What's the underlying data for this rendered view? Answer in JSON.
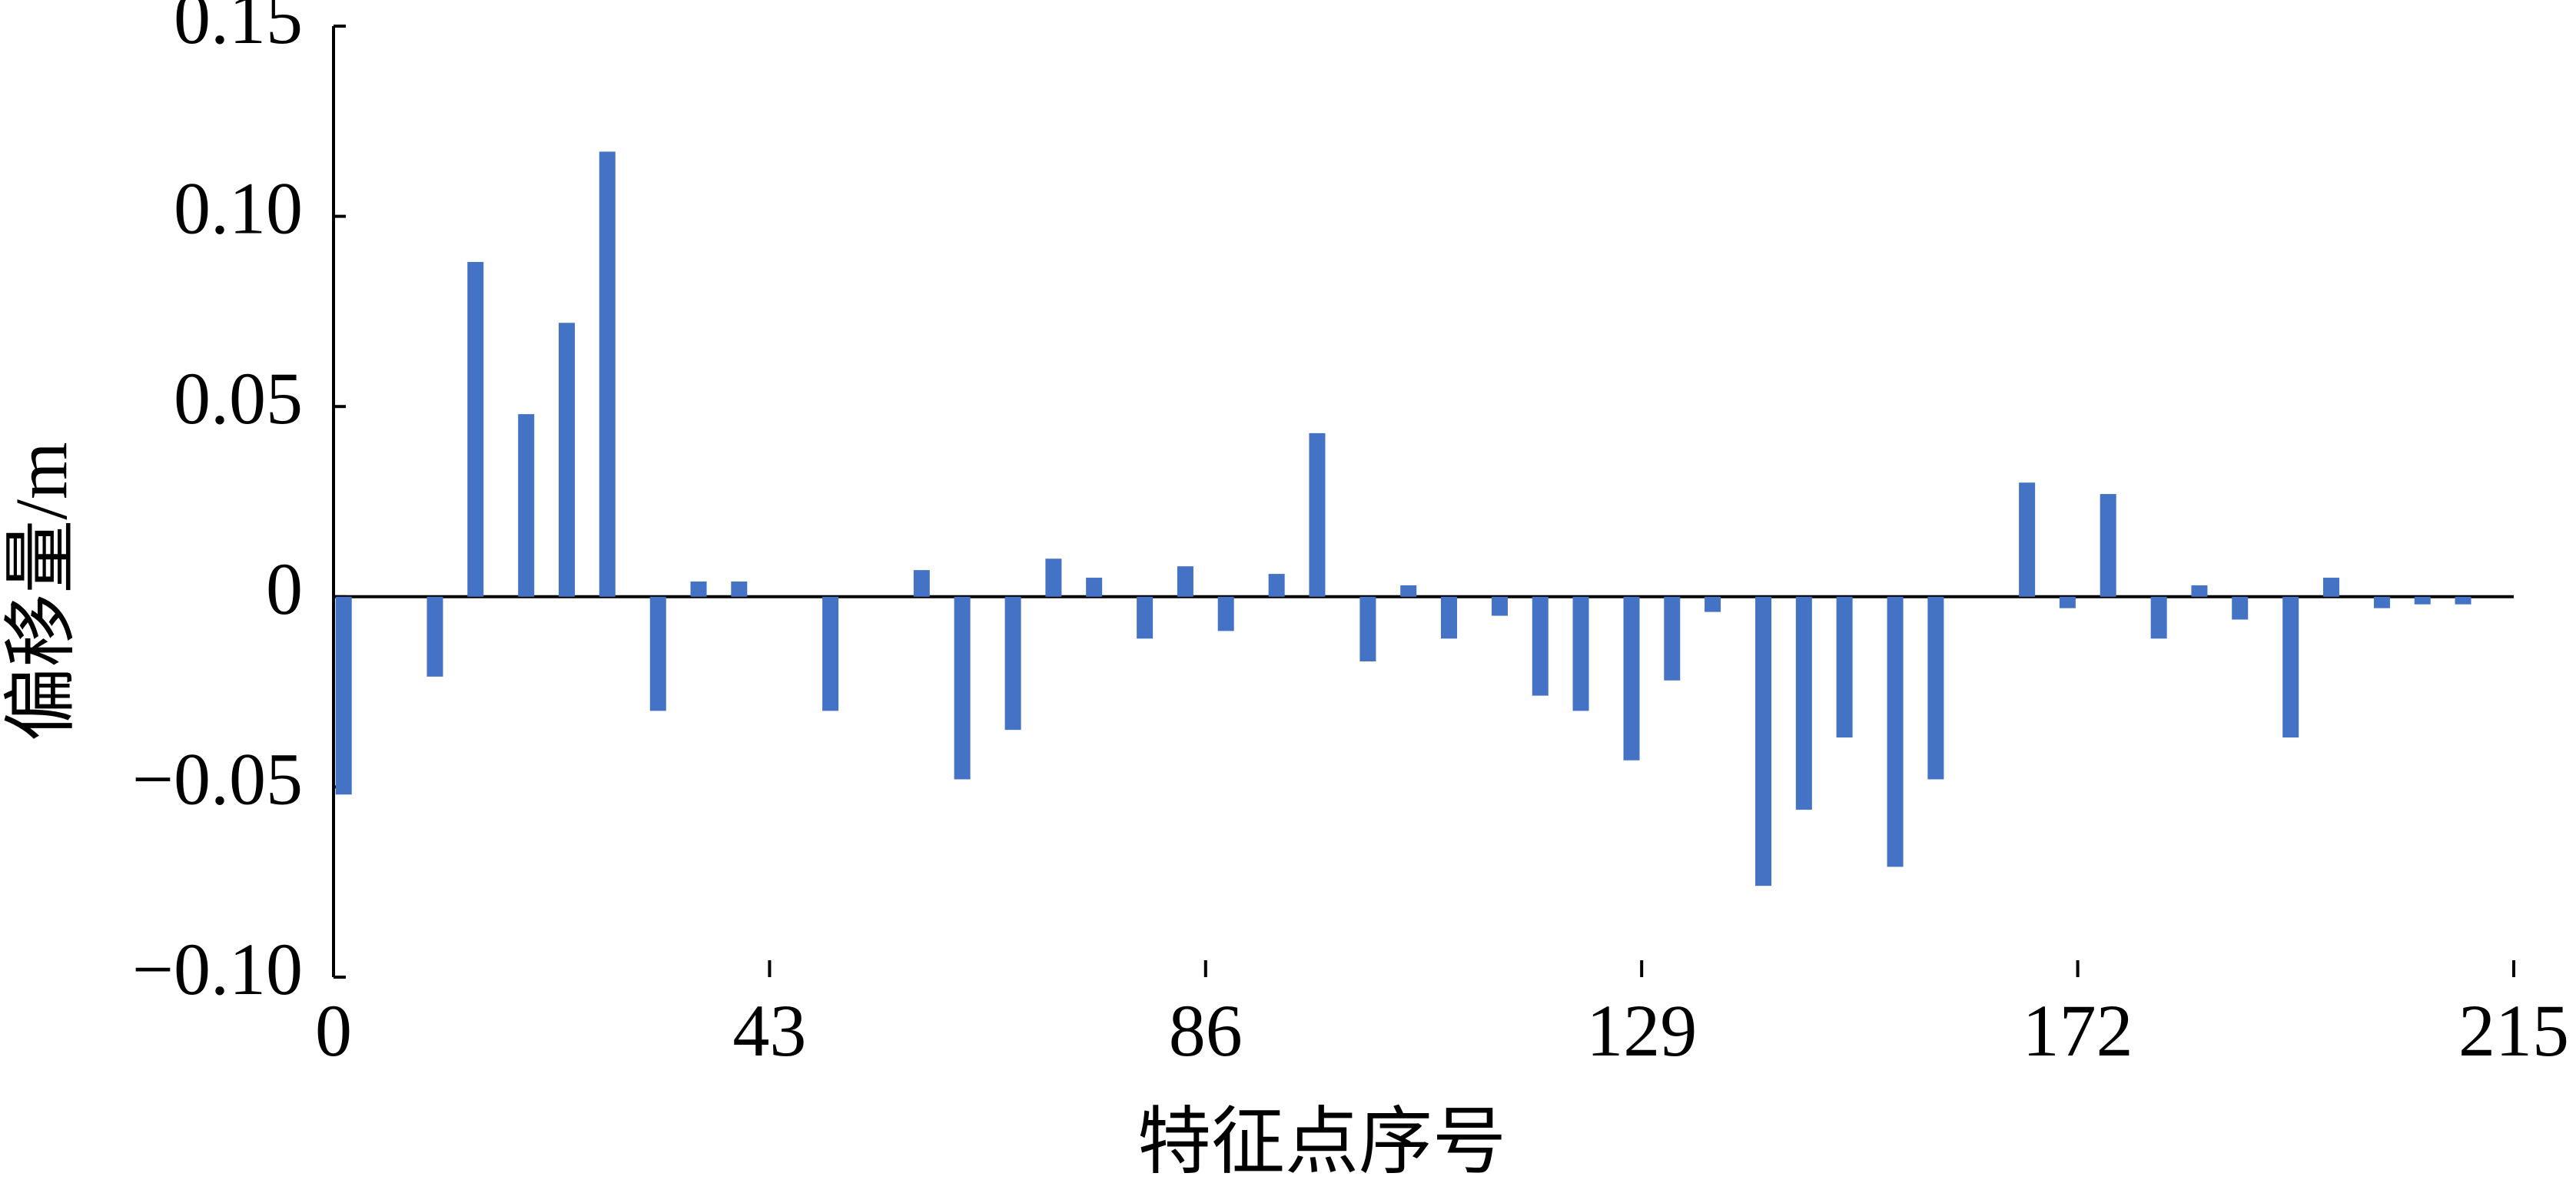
{
  "chart_data": {
    "type": "bar",
    "x_label": "特征点序号",
    "y_label": "偏移量/m",
    "color": "#4472c4",
    "x": [
      1,
      10,
      14,
      19,
      23,
      27,
      32,
      36,
      40,
      49,
      58,
      62,
      67,
      71,
      75,
      80,
      84,
      88,
      93,
      97,
      102,
      106,
      110,
      115,
      119,
      123,
      128,
      132,
      136,
      141,
      145,
      149,
      154,
      158,
      167,
      171,
      175,
      180,
      184,
      188,
      193,
      197,
      202,
      206,
      210
    ],
    "values": [
      -0.052,
      -0.021,
      0.088,
      0.048,
      0.072,
      0.117,
      -0.03,
      0.004,
      0.004,
      -0.03,
      0.007,
      -0.048,
      -0.035,
      0.01,
      0.005,
      -0.011,
      0.008,
      -0.009,
      0.006,
      0.043,
      -0.017,
      0.003,
      -0.011,
      -0.005,
      -0.026,
      -0.03,
      -0.043,
      -0.022,
      -0.004,
      -0.076,
      -0.056,
      -0.037,
      -0.071,
      -0.048,
      0.03,
      -0.003,
      0.027,
      -0.011,
      0.003,
      -0.006,
      -0.037,
      0.005,
      -0.003,
      -0.002,
      -0.002
    ],
    "xlim": [
      0,
      215
    ],
    "xticks": [
      0,
      43,
      86,
      129,
      172,
      215
    ],
    "ylim": [
      -0.1,
      0.15
    ],
    "yticks": [
      {
        "value": -0.1,
        "label": "−0.10"
      },
      {
        "value": -0.05,
        "label": "−0.05"
      },
      0,
      0.05,
      {
        "value": 0.1,
        "label": "0.10"
      },
      0.15
    ]
  }
}
